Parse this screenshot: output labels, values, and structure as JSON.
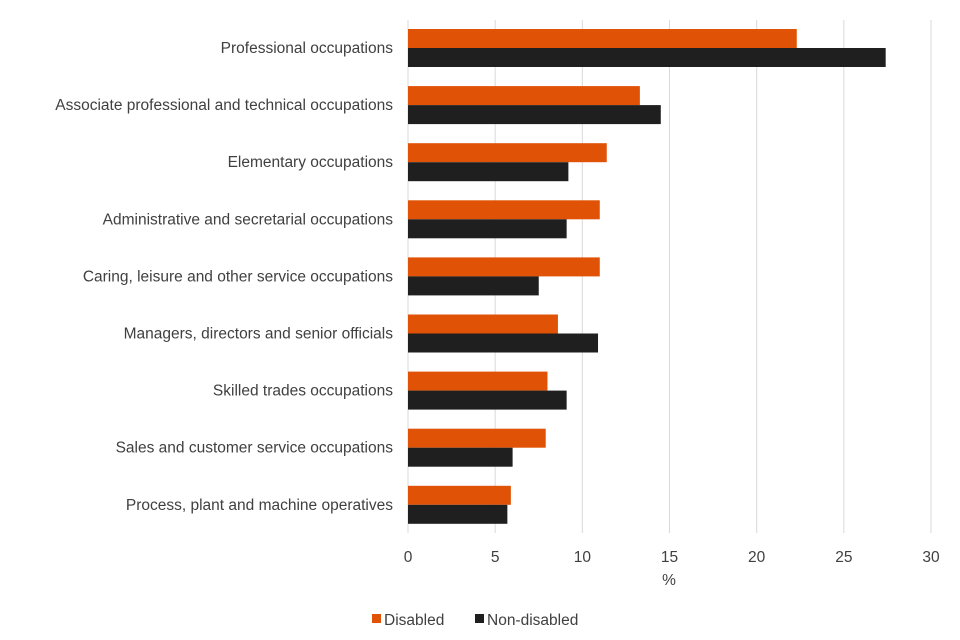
{
  "chart_data": {
    "type": "bar",
    "orientation": "horizontal",
    "categories": [
      "Professional occupations",
      "Associate professional and technical occupations",
      "Elementary occupations",
      "Administrative and secretarial occupations",
      "Caring, leisure and other service occupations",
      "Managers, directors and senior officials",
      "Skilled trades occupations",
      "Sales and customer service occupations",
      "Process, plant and machine operatives"
    ],
    "series": [
      {
        "name": "Disabled",
        "color": "#e05206",
        "values": [
          22.3,
          13.3,
          11.4,
          11.0,
          11.0,
          8.6,
          8.0,
          7.9,
          5.9
        ]
      },
      {
        "name": "Non-disabled",
        "color": "#1f1f1f",
        "values": [
          27.4,
          14.5,
          9.2,
          9.1,
          7.5,
          10.9,
          9.1,
          6.0,
          5.7
        ]
      }
    ],
    "xlabel": "%",
    "xlim": [
      0,
      30
    ],
    "xticks": [
      "0",
      "5",
      "10",
      "15",
      "20",
      "25",
      "30"
    ],
    "grid": true,
    "legend_position": "bottom-center"
  }
}
